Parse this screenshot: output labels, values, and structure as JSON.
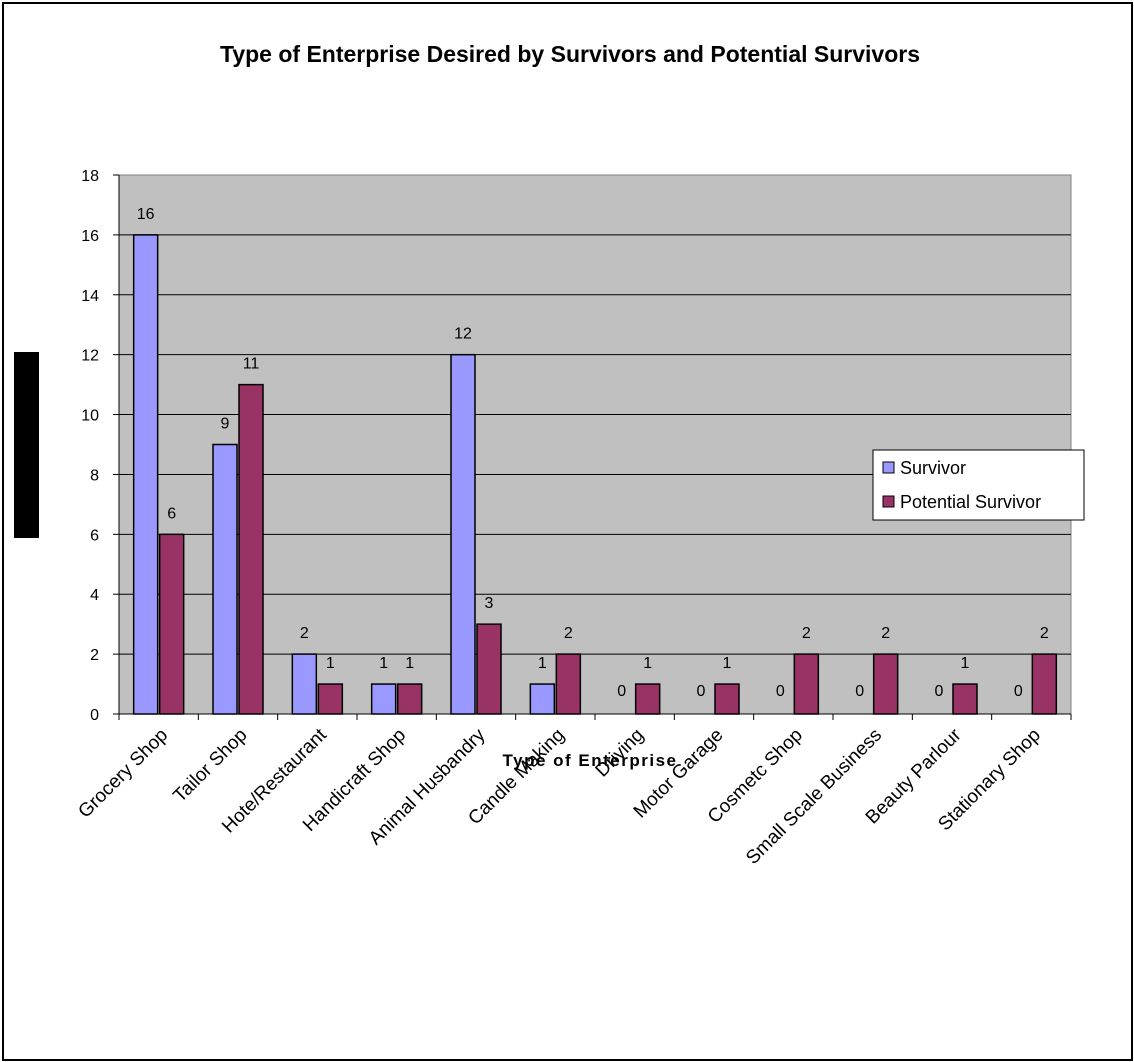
{
  "chart_data": {
    "type": "bar",
    "title": "Type of Enterprise Desired by Survivors and Potential Survivors",
    "xlabel": "Type of Enterprise",
    "ylabel": "",
    "ylim": [
      0,
      18
    ],
    "yticks": [
      0,
      2,
      4,
      6,
      8,
      10,
      12,
      14,
      16,
      18
    ],
    "grid": true,
    "legend_position": "right",
    "plot_background": "#c0c0c0",
    "categories": [
      "Grocery Shop",
      "Tailor Shop",
      "Hote/Restaurant",
      "Handicraft Shop",
      "Animal Husbandry",
      "Candle Making",
      "Driving",
      "Motor Garage",
      "Cosmetc Shop",
      "Small Scale Business",
      "Beauty Parlour",
      "Stationary Shop"
    ],
    "series": [
      {
        "name": "Survivor",
        "color": "#9999ff",
        "values": [
          16,
          9,
          2,
          1,
          12,
          1,
          0,
          0,
          0,
          0,
          0,
          0
        ]
      },
      {
        "name": "Potential Survivor",
        "color": "#993366",
        "values": [
          6,
          11,
          1,
          1,
          3,
          2,
          1,
          1,
          2,
          2,
          1,
          2
        ]
      }
    ]
  }
}
